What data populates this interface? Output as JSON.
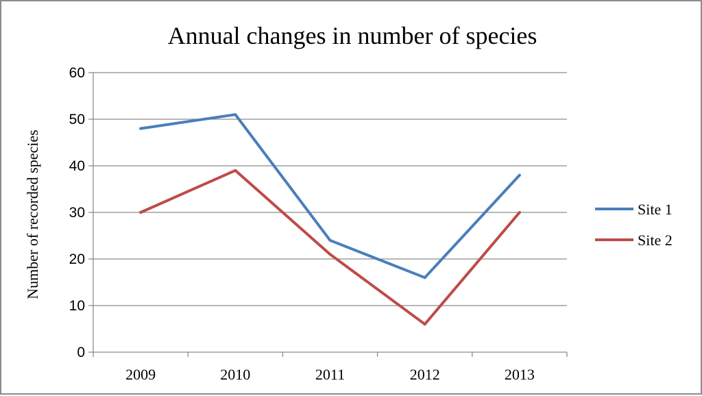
{
  "chart_data": {
    "type": "line",
    "title": "Annual changes  in number  of species",
    "xlabel": "",
    "ylabel": "Number of recorded species",
    "categories": [
      "2009",
      "2010",
      "2011",
      "2012",
      "2013"
    ],
    "yticks": [
      "0",
      "10",
      "20",
      "30",
      "40",
      "50",
      "60"
    ],
    "ylim": [
      0,
      60
    ],
    "grid": true,
    "legend_position": "right",
    "series": [
      {
        "name": "Site 1",
        "color": "#4a7ebb",
        "values": [
          48,
          51,
          24,
          16,
          38
        ]
      },
      {
        "name": "Site 2",
        "color": "#be4b48",
        "values": [
          30,
          39,
          21,
          6,
          30
        ]
      }
    ]
  }
}
